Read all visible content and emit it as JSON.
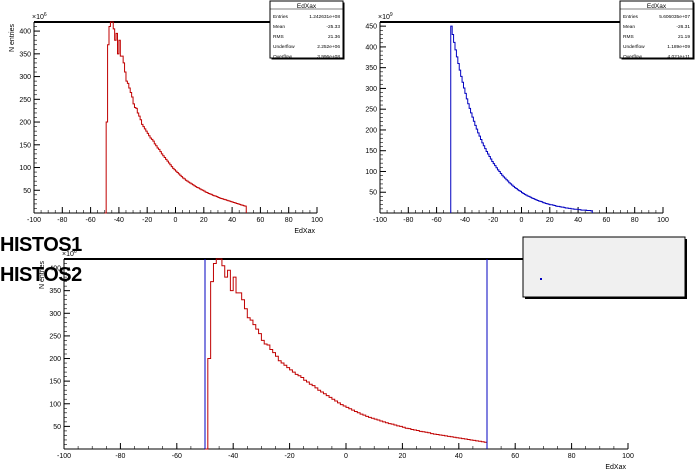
{
  "overlay_labels": [
    "HISTOS1",
    "HISTOS2"
  ],
  "chart_data": [
    {
      "type": "bar",
      "style": "step-histogram",
      "color": "#c00000",
      "title": "",
      "xlabel": "EdXax",
      "ylabel": "N entries",
      "exponent_label": "×10^6",
      "xlim": [
        -100,
        100
      ],
      "ylim": [
        0,
        420
      ],
      "xticks": [
        -100,
        -80,
        -60,
        -40,
        -20,
        0,
        20,
        40,
        60,
        80,
        100
      ],
      "yticks": [
        50,
        100,
        150,
        200,
        250,
        300,
        350,
        400
      ],
      "grid": false,
      "bin_start": -50,
      "bin_width": 1,
      "values": [
        0,
        200,
        370,
        410,
        420,
        420,
        405,
        380,
        395,
        350,
        380,
        345,
        345,
        330,
        310,
        290,
        285,
        275,
        265,
        255,
        240,
        232,
        230,
        220,
        213,
        205,
        195,
        190,
        185,
        180,
        175,
        170,
        165,
        162,
        158,
        152,
        148,
        143,
        140,
        135,
        130,
        126,
        122,
        118,
        114,
        110,
        106,
        102,
        98,
        95,
        92,
        89,
        86,
        83,
        80,
        77,
        75,
        72,
        70,
        68,
        66,
        64,
        62,
        60,
        58,
        56,
        55,
        53,
        51,
        50,
        48,
        46,
        45,
        43,
        42,
        41,
        39,
        38,
        37,
        36,
        34,
        33,
        32,
        31,
        30,
        29,
        28,
        27,
        26,
        25,
        24,
        23,
        22,
        21,
        20,
        19,
        18,
        17,
        16,
        15
      ],
      "stats": {
        "title": "EdXax",
        "rows": [
          [
            "Entries",
            "1.242631e+08"
          ],
          [
            "Mean",
            "-25.33"
          ],
          [
            "RMS",
            "21.36"
          ],
          [
            "Underflow",
            "2.252e+06"
          ],
          [
            "Overflow",
            "3.996e+08"
          ]
        ]
      }
    },
    {
      "type": "bar",
      "style": "step-histogram",
      "color": "#0000c0",
      "title": "",
      "xlabel": "",
      "ylabel": "",
      "exponent_label": "×10^9",
      "xlim": [
        -100,
        100
      ],
      "ylim": [
        0,
        460
      ],
      "xticks": [
        -100,
        -80,
        -60,
        -40,
        -20,
        0,
        20,
        40,
        60,
        80,
        100
      ],
      "yticks": [
        50,
        100,
        150,
        200,
        250,
        300,
        350,
        400,
        450
      ],
      "grid": false,
      "bin_start": -50,
      "bin_width": 1,
      "values": [
        450,
        430,
        411,
        393,
        376,
        360,
        344,
        329,
        315,
        301,
        288,
        275,
        263,
        252,
        241,
        231,
        221,
        211,
        202,
        193,
        185,
        177,
        169,
        162,
        155,
        148,
        142,
        136,
        130,
        124,
        119,
        114,
        109,
        104,
        100,
        95,
        91,
        87,
        84,
        80,
        77,
        73,
        70,
        67,
        64,
        61,
        59,
        56,
        54,
        52,
        49,
        47,
        45,
        43,
        41,
        40,
        38,
        36,
        35,
        33,
        32,
        30,
        29,
        28,
        27,
        25,
        24,
        23,
        22,
        21,
        20,
        20,
        19,
        18,
        17,
        16,
        16,
        15,
        14,
        14,
        13,
        12,
        12,
        11,
        11,
        10,
        10,
        9,
        9,
        9,
        8,
        8,
        7,
        7,
        7,
        7,
        6,
        6,
        6,
        5
      ],
      "stats": {
        "title": "EdXax",
        "rows": [
          [
            "Entries",
            "5.606035e+07"
          ],
          [
            "Mean",
            "-26.31"
          ],
          [
            "RMS",
            "21.19"
          ],
          [
            "Underflow",
            "1.189e+09"
          ],
          [
            "Overflow",
            "4.021e+11"
          ]
        ]
      }
    },
    {
      "type": "bar",
      "style": "step-histogram-overlay",
      "title": "",
      "xlabel": "EdXax",
      "ylabel": "N entries",
      "exponent_label": "×10^6",
      "xlim": [
        -100,
        100
      ],
      "ylim": [
        0,
        420
      ],
      "xticks": [
        -100,
        -80,
        -60,
        -40,
        -20,
        0,
        20,
        40,
        60,
        80,
        100
      ],
      "yticks": [
        50,
        100,
        150,
        200,
        250,
        300,
        350,
        400
      ],
      "grid": false,
      "series": [
        {
          "color": "#c00000",
          "bin_start": -50,
          "bin_width": 1,
          "values": [
            0,
            200,
            370,
            410,
            420,
            420,
            405,
            380,
            395,
            350,
            380,
            345,
            345,
            330,
            310,
            290,
            285,
            275,
            265,
            255,
            240,
            232,
            230,
            220,
            213,
            205,
            195,
            190,
            185,
            180,
            175,
            170,
            165,
            162,
            158,
            152,
            148,
            143,
            140,
            135,
            130,
            126,
            122,
            118,
            114,
            110,
            106,
            102,
            98,
            95,
            92,
            89,
            86,
            83,
            80,
            77,
            75,
            72,
            70,
            68,
            66,
            64,
            62,
            60,
            58,
            56,
            55,
            53,
            51,
            50,
            48,
            46,
            45,
            43,
            42,
            41,
            39,
            38,
            37,
            36,
            34,
            33,
            32,
            31,
            30,
            29,
            28,
            27,
            26,
            25,
            24,
            23,
            22,
            21,
            20,
            19,
            18,
            17,
            16,
            15
          ]
        },
        {
          "color": "#0000c0",
          "style": "vertical-lines",
          "x_positions": [
            -50,
            50
          ]
        }
      ],
      "legend": {
        "placement": "top-right",
        "entries": []
      }
    }
  ]
}
